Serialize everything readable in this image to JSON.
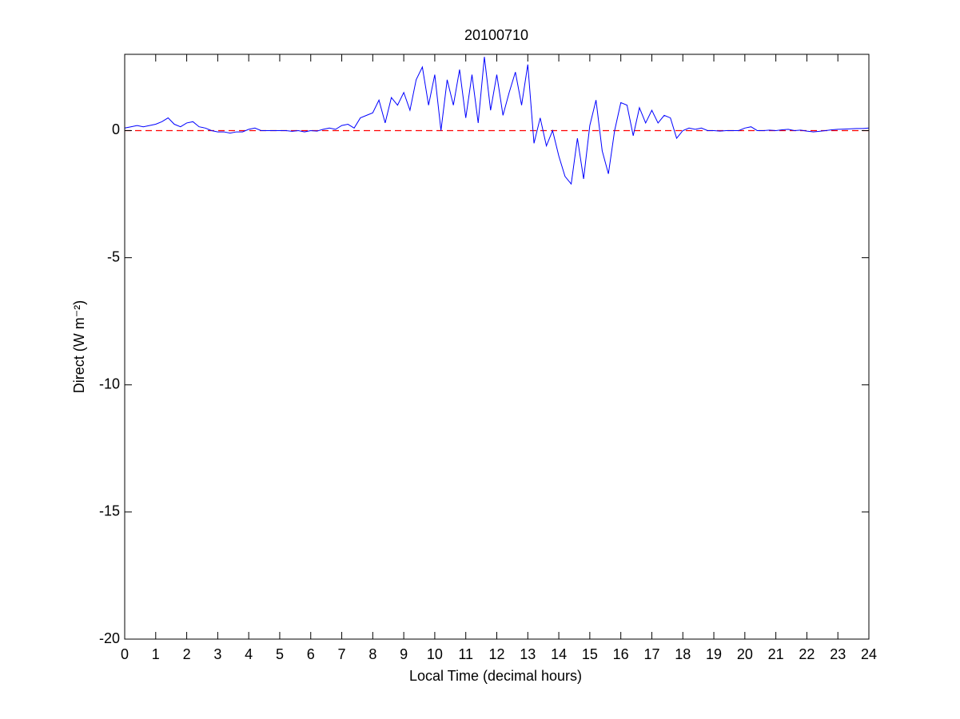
{
  "chart_data": {
    "type": "line",
    "title": "20100710",
    "x_label": "Local Time (decimal hours)",
    "y_label": "Direct (W m⁻²)",
    "x": [
      0,
      0.2,
      0.4,
      0.6,
      0.8,
      1,
      1.2,
      1.4,
      1.6,
      1.8,
      2,
      2.2,
      2.4,
      2.6,
      2.8,
      3,
      3.2,
      3.4,
      3.6,
      3.8,
      4,
      4.2,
      4.4,
      4.6,
      4.8,
      5,
      5.2,
      5.4,
      5.6,
      5.8,
      6,
      6.2,
      6.4,
      6.6,
      6.8,
      7,
      7.2,
      7.4,
      7.6,
      7.8,
      8,
      8.2,
      8.4,
      8.6,
      8.8,
      9,
      9.2,
      9.4,
      9.6,
      9.8,
      10,
      10.2,
      10.4,
      10.6,
      10.8,
      11,
      11.2,
      11.4,
      11.6,
      11.8,
      12,
      12.2,
      12.4,
      12.6,
      12.8,
      13,
      13.2,
      13.4,
      13.6,
      13.8,
      14,
      14.2,
      14.4,
      14.6,
      14.8,
      15,
      15.2,
      15.4,
      15.6,
      15.8,
      16,
      16.2,
      16.4,
      16.6,
      16.8,
      17,
      17.2,
      17.4,
      17.6,
      17.8,
      18,
      18.2,
      18.4,
      18.6,
      18.8,
      19,
      19.2,
      19.4,
      19.6,
      19.8,
      20,
      20.2,
      20.4,
      20.6,
      20.8,
      21,
      21.2,
      21.4,
      21.6,
      21.8,
      22,
      22.2,
      22.4,
      22.6,
      22.8,
      23,
      23.2,
      23.4,
      23.6,
      23.8,
      24
    ],
    "series": [
      {
        "color": "#0000ff",
        "values": [
          0.1,
          0.15,
          0.2,
          0.15,
          0.2,
          0.25,
          0.35,
          0.5,
          0.25,
          0.15,
          0.3,
          0.35,
          0.15,
          0.1,
          0,
          -0.05,
          -0.05,
          -0.1,
          -0.05,
          -0.05,
          0.05,
          0.1,
          0,
          0,
          0,
          0,
          0,
          -0.03,
          0,
          -0.05,
          0,
          -0.02,
          0.05,
          0.1,
          0.05,
          0.2,
          0.25,
          0.1,
          0.5,
          0.6,
          0.7,
          1.2,
          0.3,
          1.3,
          1.0,
          1.5,
          0.8,
          2.0,
          2.5,
          1.0,
          2.2,
          0,
          2.0,
          1.0,
          2.4,
          0.5,
          2.2,
          0.3,
          2.9,
          0.8,
          2.2,
          0.6,
          1.5,
          2.3,
          1.0,
          2.6,
          -0.5,
          0.5,
          -0.6,
          0,
          -1.0,
          -1.8,
          -2.1,
          -0.3,
          -1.9,
          0.2,
          1.2,
          -0.8,
          -1.7,
          0,
          1.1,
          1.0,
          -0.2,
          0.9,
          0.3,
          0.8,
          0.3,
          0.6,
          0.5,
          -0.3,
          0,
          0.1,
          0.05,
          0.1,
          0,
          0,
          -0.02,
          0,
          0,
          0,
          0.1,
          0.15,
          0,
          0,
          0.02,
          0,
          0.03,
          0.05,
          0,
          0.02,
          -0.02,
          -0.05,
          -0.03,
          0,
          0.03,
          0.05,
          0.06,
          0.07,
          0.08,
          0.08,
          0.1
        ]
      }
    ],
    "reference_line": {
      "value": 0,
      "color": "#ff0000",
      "dashed": true
    },
    "xlim": [
      0,
      24
    ],
    "ylim": [
      -20,
      3
    ],
    "xticks": [
      0,
      1,
      2,
      3,
      4,
      5,
      6,
      7,
      8,
      9,
      10,
      11,
      12,
      13,
      14,
      15,
      16,
      17,
      18,
      19,
      20,
      21,
      22,
      23,
      24
    ],
    "yticks": [
      -20,
      -15,
      -10,
      -5,
      0
    ],
    "grid": false
  }
}
